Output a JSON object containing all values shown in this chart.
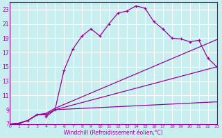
{
  "xlabel": "Windchill (Refroidissement éolien,°C)",
  "bg_color": "#c8eef0",
  "grid_color": "#ffffff",
  "line_color": "#990099",
  "xlim": [
    0,
    23
  ],
  "ylim": [
    7,
    24
  ],
  "xticks": [
    0,
    1,
    2,
    3,
    4,
    5,
    6,
    7,
    8,
    9,
    10,
    11,
    12,
    13,
    14,
    15,
    16,
    17,
    18,
    19,
    20,
    21,
    22,
    23
  ],
  "yticks": [
    7,
    9,
    11,
    13,
    15,
    17,
    19,
    21,
    23
  ],
  "curve_x": [
    0,
    1,
    2,
    3,
    4,
    4,
    5,
    6,
    7,
    8,
    9,
    10,
    11,
    12,
    13,
    14,
    15,
    16,
    17,
    18,
    19,
    20,
    21,
    22,
    23
  ],
  "curve_y": [
    7,
    7.1,
    7.5,
    8.3,
    8.3,
    8.0,
    9.0,
    14.5,
    17.5,
    19.3,
    20.3,
    19.3,
    21.0,
    22.5,
    22.8,
    23.5,
    23.2,
    21.3,
    20.3,
    19.0,
    18.9,
    18.5,
    18.7,
    16.2,
    15.0
  ],
  "line_high_x": [
    0,
    1,
    2,
    3,
    4,
    5,
    23
  ],
  "line_high_y": [
    7,
    7.1,
    7.5,
    8.3,
    8.5,
    9.2,
    18.8
  ],
  "line_mid_x": [
    0,
    1,
    2,
    3,
    4,
    5,
    23
  ],
  "line_mid_y": [
    7,
    7.1,
    7.5,
    8.3,
    8.3,
    9.0,
    15.0
  ],
  "line_low_x": [
    0,
    1,
    2,
    3,
    4,
    5,
    23
  ],
  "line_low_y": [
    7,
    7.1,
    7.5,
    8.3,
    8.3,
    9.0,
    10.1
  ]
}
